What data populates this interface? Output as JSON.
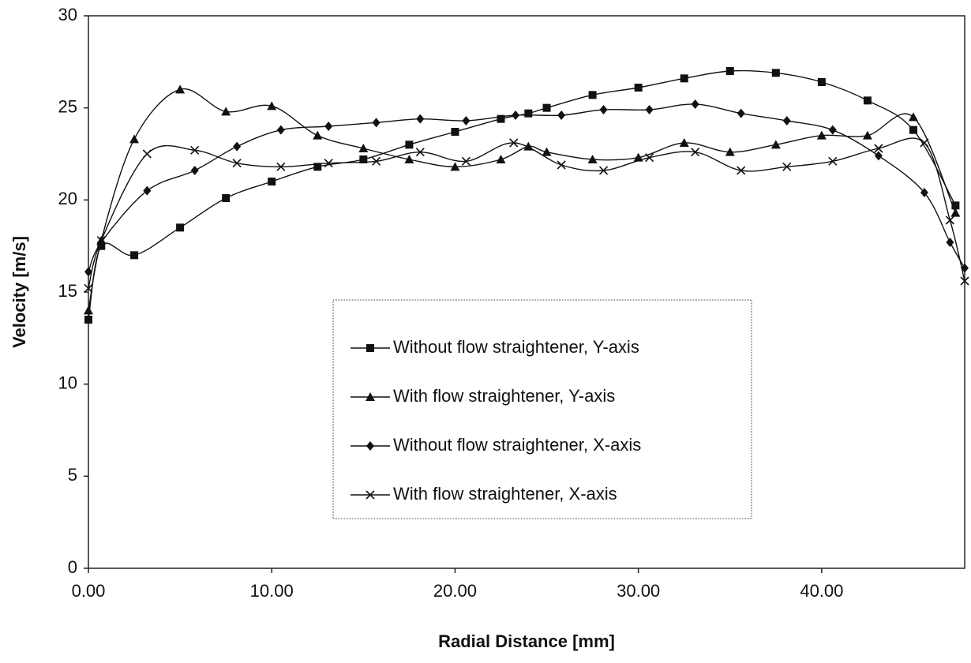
{
  "chart_data": {
    "type": "line",
    "x_label": "Radial Distance [mm]",
    "y_label": "Velocity [m/s]",
    "xlim": [
      0,
      47.8
    ],
    "ylim": [
      0,
      30
    ],
    "xticks": [
      {
        "value": 0,
        "label": "0.00"
      },
      {
        "value": 10,
        "label": "10.00"
      },
      {
        "value": 20,
        "label": "20.00"
      },
      {
        "value": 30,
        "label": "30.00"
      },
      {
        "value": 40,
        "label": "40.00"
      }
    ],
    "yticks": [
      0,
      5,
      10,
      15,
      20,
      25,
      30
    ],
    "grid": false,
    "legend": "center",
    "series": [
      {
        "name": "Without flow straightener, Y-axis",
        "color": "#111111",
        "marker": "square",
        "x": [
          0,
          0.7,
          2.5,
          5,
          7.5,
          10,
          12.5,
          15,
          17.5,
          20,
          22.5,
          24,
          25,
          27.5,
          30,
          32.5,
          35,
          37.5,
          40,
          42.5,
          45,
          47.3
        ],
        "values": [
          13.5,
          17.5,
          17,
          18.5,
          20.1,
          21,
          21.8,
          22.2,
          23,
          23.7,
          24.4,
          24.7,
          25,
          25.7,
          26.1,
          26.6,
          27,
          26.9,
          26.4,
          25.4,
          23.8,
          19.7
        ]
      },
      {
        "name": "With flow straightener, Y-axis",
        "color": "#111111",
        "marker": "triangle",
        "x": [
          0,
          0.7,
          2.5,
          5,
          7.5,
          10,
          12.5,
          15,
          17.5,
          20,
          22.5,
          24,
          25,
          27.5,
          30,
          32.5,
          35,
          37.5,
          40,
          42.5,
          45,
          47.3
        ],
        "values": [
          14,
          17.8,
          23.3,
          26,
          24.8,
          25.1,
          23.5,
          22.8,
          22.2,
          21.8,
          22.2,
          22.9,
          22.6,
          22.2,
          22.3,
          23.1,
          22.6,
          23,
          23.5,
          23.5,
          24.5,
          19.3
        ]
      },
      {
        "name": "Without flow straightener, X-axis",
        "color": "#111111",
        "marker": "diamond",
        "x": [
          0,
          0.7,
          3.2,
          5.8,
          8.1,
          10.5,
          13.1,
          15.7,
          18.1,
          20.6,
          23.3,
          25.8,
          28.1,
          30.6,
          33.1,
          35.6,
          38.1,
          40.6,
          43.1,
          45.6,
          47,
          47.8
        ],
        "values": [
          16.1,
          17.7,
          20.5,
          21.6,
          22.9,
          23.8,
          24,
          24.2,
          24.4,
          24.3,
          24.6,
          24.6,
          24.9,
          24.9,
          25.2,
          24.7,
          24.3,
          23.8,
          22.4,
          20.4,
          17.7,
          16.3
        ]
      },
      {
        "name": "With flow straightener, X-axis",
        "color": "#111111",
        "marker": "x",
        "x": [
          0,
          0.7,
          3.2,
          5.8,
          8.1,
          10.5,
          13.1,
          15.7,
          18.1,
          20.6,
          23.2,
          25.8,
          28.1,
          30.6,
          33.1,
          35.6,
          38.1,
          40.6,
          43.1,
          45.6,
          47,
          47.8
        ],
        "values": [
          15.2,
          17.8,
          22.5,
          22.7,
          22,
          21.8,
          22,
          22.1,
          22.6,
          22.1,
          23.1,
          21.9,
          21.6,
          22.3,
          22.6,
          21.6,
          21.8,
          22.1,
          22.8,
          23.1,
          18.9,
          15.6
        ]
      }
    ]
  }
}
